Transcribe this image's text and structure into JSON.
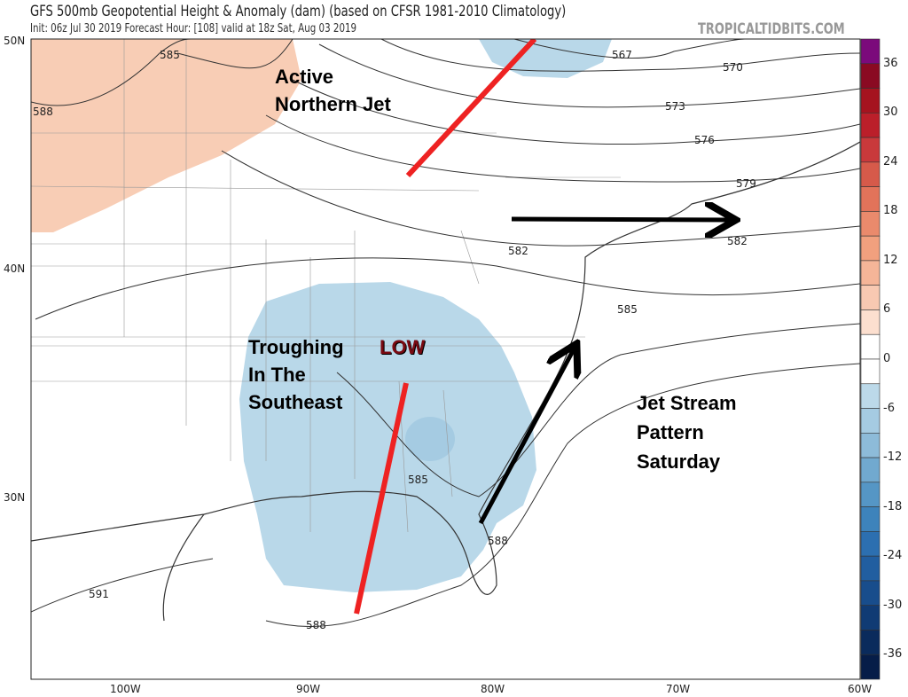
{
  "header": {
    "title": "GFS 500mb Geopotential Height & Anomaly (dam) (based on CFSR 1981-2010 Climatology)",
    "subtitle": "Init: 06z Jul 30 2019   Forecast Hour: [108]   valid at 18z Sat, Aug 03 2019",
    "brand": "TROPICALTIDBITS.COM"
  },
  "axes": {
    "lat": [
      "50N",
      "40N",
      "30N"
    ],
    "lon": [
      "100W",
      "90W",
      "80W",
      "70W",
      "60W"
    ]
  },
  "contour_labels": [
    "585",
    "588",
    "567",
    "570",
    "573",
    "576",
    "579",
    "582",
    "582",
    "585",
    "585",
    "588",
    "588",
    "591"
  ],
  "annotations": {
    "north_jet": [
      "Active",
      "Northern Jet"
    ],
    "trough": [
      "Troughing",
      "In The",
      "Southeast"
    ],
    "low": "LOW",
    "pattern": [
      "Jet Stream",
      "Pattern",
      "Saturday"
    ]
  },
  "colorbar": {
    "ticks": [
      "36",
      "30",
      "24",
      "18",
      "12",
      "6",
      "0",
      "-6",
      "-12",
      "-18",
      "-24",
      "-30",
      "-36"
    ],
    "colors": [
      "#7b0a7b",
      "#8a0a22",
      "#a5131f",
      "#bb1f2a",
      "#c9393b",
      "#d65a4a",
      "#e2735a",
      "#ea8a6c",
      "#f1a07e",
      "#f5b598",
      "#f8c9b2",
      "#fcdfcf",
      "#ffffff",
      "#ffffff",
      "#bcd9e9",
      "#a5cbe2",
      "#8dbbd9",
      "#71a9cf",
      "#5596c5",
      "#3d83bb",
      "#2c6fb0",
      "#215ea0",
      "#184d8c",
      "#103b74",
      "#0a2b5c",
      "#061d48"
    ]
  },
  "colors": {
    "jet_line": "#ee2222",
    "arrow": "#000000",
    "positive_anomaly": "#f8cdb5",
    "negative_anomaly": "#b9d8e9"
  }
}
